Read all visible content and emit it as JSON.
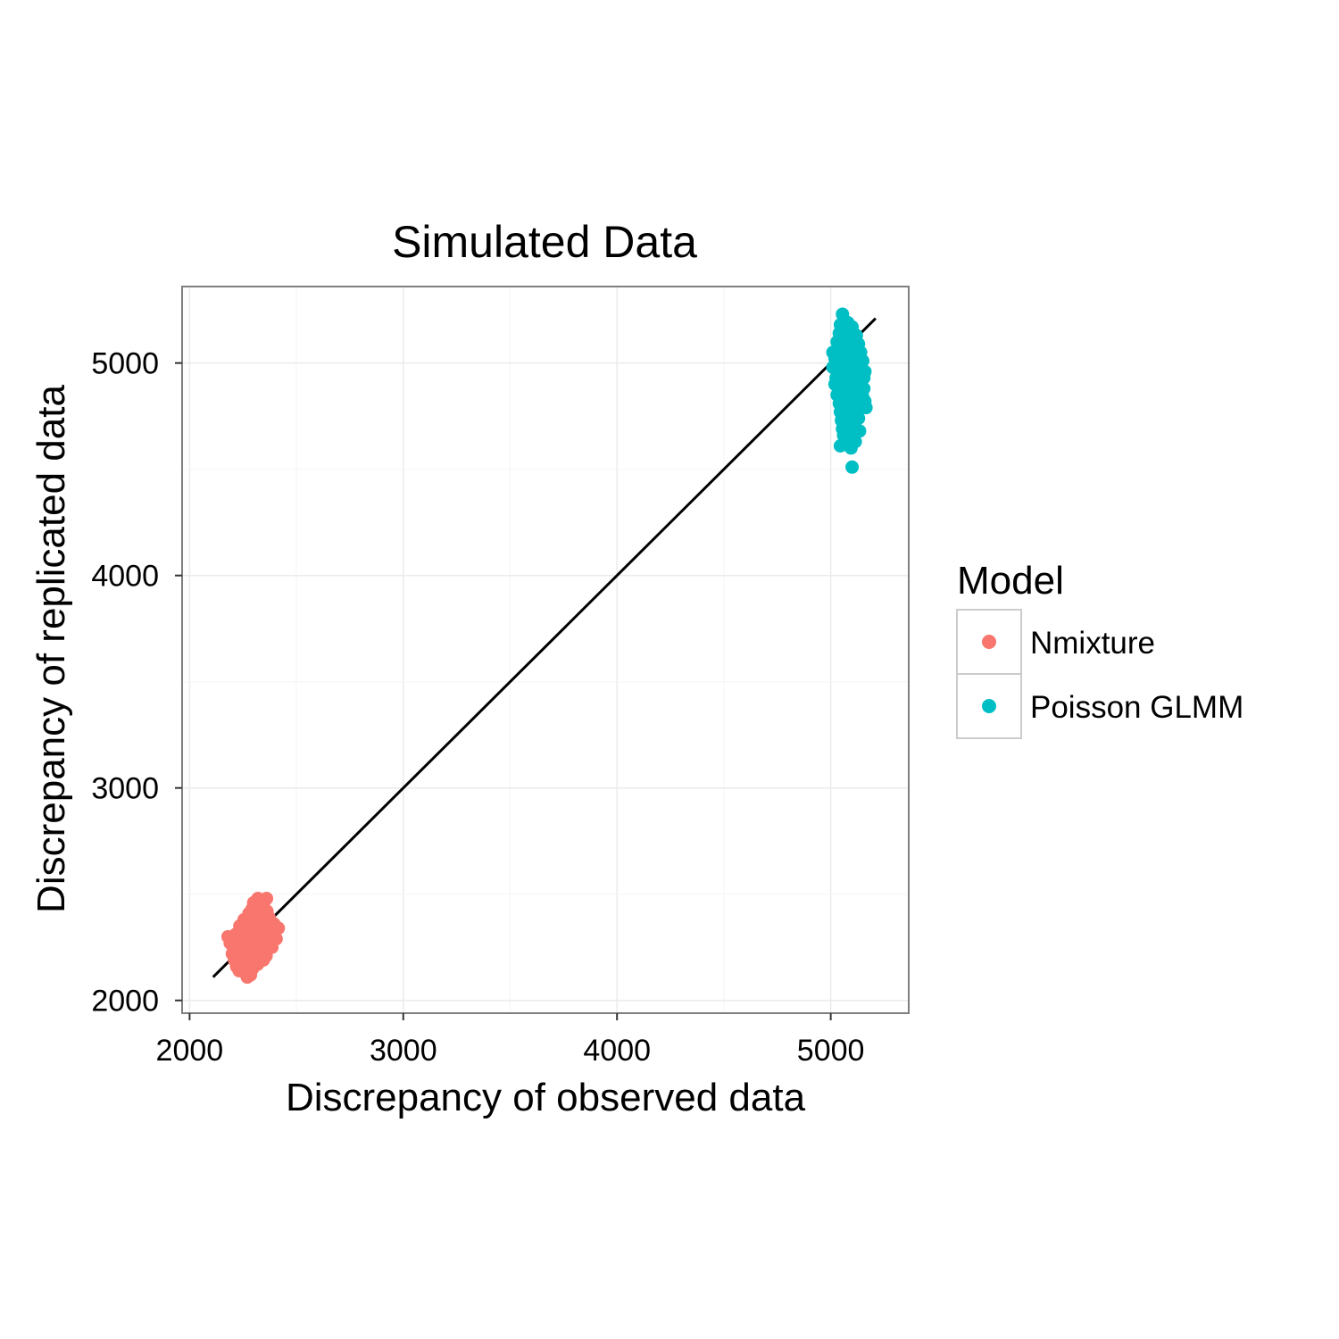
{
  "chart_data": {
    "type": "scatter",
    "title": "Simulated Data",
    "xlabel": "Discrepancy of observed data",
    "ylabel": "Discrepancy of replicated data",
    "xlim": [
      1965,
      5365
    ],
    "ylim": [
      1940,
      5360
    ],
    "x_ticks": [
      2000,
      3000,
      4000,
      5000
    ],
    "y_ticks": [
      2000,
      3000,
      4000,
      5000
    ],
    "x_tick_labels": [
      "2000",
      "3000",
      "4000",
      "5000"
    ],
    "y_tick_labels": [
      "2000",
      "3000",
      "4000",
      "5000"
    ],
    "grid": true,
    "legend": {
      "title": "Model",
      "position": "right"
    },
    "reference_line": {
      "from": [
        2110,
        2110
      ],
      "to": [
        5210,
        5210
      ],
      "color": "#000000"
    },
    "series": [
      {
        "name": "Nmixture",
        "color": "#F8766D",
        "points": [
          [
            2180,
            2300
          ],
          [
            2190,
            2270
          ],
          [
            2200,
            2220
          ],
          [
            2205,
            2250
          ],
          [
            2210,
            2190
          ],
          [
            2215,
            2310
          ],
          [
            2220,
            2160
          ],
          [
            2225,
            2280
          ],
          [
            2230,
            2230
          ],
          [
            2232,
            2140
          ],
          [
            2235,
            2350
          ],
          [
            2240,
            2200
          ],
          [
            2245,
            2320
          ],
          [
            2248,
            2260
          ],
          [
            2250,
            2170
          ],
          [
            2255,
            2380
          ],
          [
            2258,
            2240
          ],
          [
            2260,
            2130
          ],
          [
            2262,
            2300
          ],
          [
            2265,
            2200
          ],
          [
            2268,
            2350
          ],
          [
            2270,
            2110
          ],
          [
            2272,
            2270
          ],
          [
            2275,
            2160
          ],
          [
            2278,
            2410
          ],
          [
            2280,
            2230
          ],
          [
            2283,
            2330
          ],
          [
            2285,
            2120
          ],
          [
            2288,
            2190
          ],
          [
            2290,
            2290
          ],
          [
            2292,
            2430
          ],
          [
            2295,
            2150
          ],
          [
            2298,
            2360
          ],
          [
            2300,
            2240
          ],
          [
            2302,
            2180
          ],
          [
            2305,
            2310
          ],
          [
            2308,
            2400
          ],
          [
            2310,
            2210
          ],
          [
            2312,
            2270
          ],
          [
            2315,
            2440
          ],
          [
            2318,
            2170
          ],
          [
            2320,
            2340
          ],
          [
            2322,
            2250
          ],
          [
            2325,
            2200
          ],
          [
            2328,
            2390
          ],
          [
            2330,
            2300
          ],
          [
            2333,
            2460
          ],
          [
            2335,
            2230
          ],
          [
            2338,
            2350
          ],
          [
            2340,
            2280
          ],
          [
            2342,
            2420
          ],
          [
            2345,
            2190
          ],
          [
            2348,
            2320
          ],
          [
            2350,
            2250
          ],
          [
            2352,
            2470
          ],
          [
            2355,
            2370
          ],
          [
            2358,
            2210
          ],
          [
            2360,
            2300
          ],
          [
            2362,
            2420
          ],
          [
            2365,
            2260
          ],
          [
            2368,
            2340
          ],
          [
            2372,
            2390
          ],
          [
            2375,
            2280
          ],
          [
            2380,
            2330
          ],
          [
            2385,
            2250
          ],
          [
            2390,
            2300
          ],
          [
            2395,
            2360
          ],
          [
            2405,
            2290
          ],
          [
            2415,
            2340
          ],
          [
            2300,
            2460
          ],
          [
            2320,
            2480
          ],
          [
            2340,
            2470
          ],
          [
            2360,
            2480
          ],
          [
            2290,
            2380
          ],
          [
            2250,
            2360
          ]
        ]
      },
      {
        "name": "Poisson GLMM",
        "color": "#00BFC4",
        "points": [
          [
            5055,
            5230
          ],
          [
            5060,
            5200
          ],
          [
            5045,
            5180
          ],
          [
            5065,
            5160
          ],
          [
            5080,
            5190
          ],
          [
            5040,
            5140
          ],
          [
            5055,
            5120
          ],
          [
            5100,
            5170
          ],
          [
            5030,
            5100
          ],
          [
            5075,
            5110
          ],
          [
            5120,
            5130
          ],
          [
            5010,
            5050
          ],
          [
            5050,
            5080
          ],
          [
            5090,
            5060
          ],
          [
            5130,
            5090
          ],
          [
            5020,
            5020
          ],
          [
            5060,
            5040
          ],
          [
            5100,
            5030
          ],
          [
            5140,
            5050
          ],
          [
            5030,
            4990
          ],
          [
            5070,
            5000
          ],
          [
            5110,
            4990
          ],
          [
            5150,
            5010
          ],
          [
            5040,
            4960
          ],
          [
            5080,
            4970
          ],
          [
            5120,
            4950
          ],
          [
            5160,
            4960
          ],
          [
            5025,
            4930
          ],
          [
            5065,
            4920
          ],
          [
            5105,
            4940
          ],
          [
            5145,
            4920
          ],
          [
            5035,
            4890
          ],
          [
            5075,
            4880
          ],
          [
            5115,
            4900
          ],
          [
            5155,
            4880
          ],
          [
            5030,
            4850
          ],
          [
            5070,
            4840
          ],
          [
            5110,
            4860
          ],
          [
            5150,
            4840
          ],
          [
            5040,
            4810
          ],
          [
            5080,
            4800
          ],
          [
            5120,
            4820
          ],
          [
            5165,
            4790
          ],
          [
            5045,
            4770
          ],
          [
            5085,
            4760
          ],
          [
            5125,
            4780
          ],
          [
            5050,
            4730
          ],
          [
            5090,
            4720
          ],
          [
            5130,
            4740
          ],
          [
            5055,
            4690
          ],
          [
            5095,
            4700
          ],
          [
            5135,
            4680
          ],
          [
            5060,
            4660
          ],
          [
            5100,
            4650
          ],
          [
            5045,
            4610
          ],
          [
            5075,
            4620
          ],
          [
            5115,
            4630
          ],
          [
            5095,
            4600
          ],
          [
            5100,
            4510
          ],
          [
            5010,
            4980
          ],
          [
            5085,
            5150
          ],
          [
            5140,
            5000
          ],
          [
            5155,
            4930
          ],
          [
            5020,
            4900
          ],
          [
            5160,
            4820
          ]
        ]
      }
    ]
  }
}
